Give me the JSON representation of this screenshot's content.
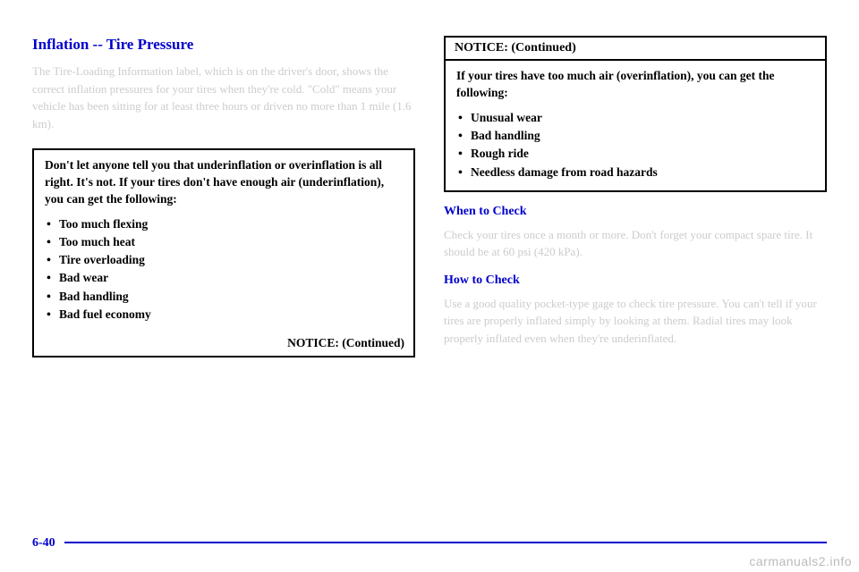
{
  "left": {
    "title": "Inflation -- Tire Pressure",
    "para1": "The Tire-Loading Information label, which is on the driver's door, shows the correct inflation pressures for your tires when they're cold. \"Cold\" means your vehicle has been sitting for at least three hours or driven no more than 1 mile (1.6 km).",
    "notice": {
      "intro": "Don't let anyone tell you that underinflation or overinflation is all right. It's not. If your tires don't have enough air (underinflation), you can get the following:",
      "bullets": [
        "Too much flexing",
        "Too much heat",
        "Tire overloading",
        "Bad wear",
        "Bad handling",
        "Bad fuel economy"
      ],
      "cont": "NOTICE: (Continued)"
    }
  },
  "right": {
    "notice": {
      "header": "NOTICE: (Continued)",
      "intro": "If your tires have too much air (overinflation), you can get the following:",
      "bullets": [
        "Unusual wear",
        "Bad handling",
        "Rough ride",
        "Needless damage from road hazards"
      ]
    },
    "sub1": {
      "title": "When to Check",
      "body": "Check your tires once a month or more. Don't forget your compact spare tire. It should be at 60 psi (420 kPa)."
    },
    "sub2": {
      "title": "How to Check",
      "body": "Use a good quality pocket-type gage to check tire pressure. You can't tell if your tires are properly inflated simply by looking at them. Radial tires may look properly inflated even when they're underinflated."
    }
  },
  "pagenum": "6-40",
  "watermark": "carmanuals2.info"
}
